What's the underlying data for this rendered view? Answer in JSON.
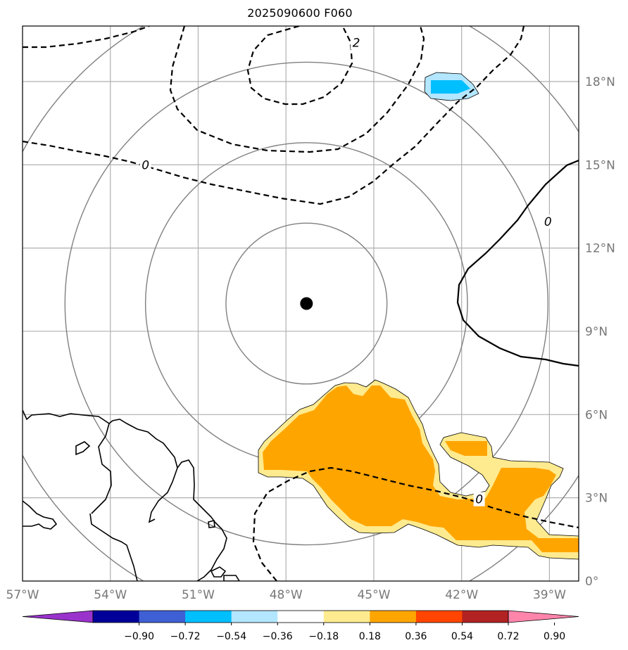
{
  "title": "2025090600 F060",
  "map": {
    "lon_range": [
      -57,
      -38
    ],
    "lat_range": [
      0,
      20
    ],
    "lon_ticks": [
      {
        "value": -57,
        "label": "57°W"
      },
      {
        "value": -54,
        "label": "54°W"
      },
      {
        "value": -51,
        "label": "51°W"
      },
      {
        "value": -48,
        "label": "48°W"
      },
      {
        "value": -45,
        "label": "45°W"
      },
      {
        "value": -42,
        "label": "42°W"
      },
      {
        "value": -39,
        "label": "39°W"
      }
    ],
    "lat_ticks": [
      {
        "value": 0,
        "label": "0°"
      },
      {
        "value": 3,
        "label": "3°N"
      },
      {
        "value": 6,
        "label": "6°N"
      },
      {
        "value": 9,
        "label": "9°N"
      },
      {
        "value": 12,
        "label": "12°N"
      },
      {
        "value": 15,
        "label": "15°N"
      },
      {
        "value": 18,
        "label": "18°N"
      }
    ],
    "center_marker": {
      "lon": -47.3,
      "lat": 10.0
    },
    "range_rings_deg": [
      2.75,
      5.5,
      8.25,
      11.0
    ],
    "contour_labels": [
      {
        "text": "2",
        "lon": -45.6,
        "lat": 19.4
      },
      {
        "text": "0",
        "lon": -52.8,
        "lat": 15.0
      },
      {
        "text": "0",
        "lon": -39.05,
        "lat": 12.95
      },
      {
        "text": "0",
        "lon": -41.4,
        "lat": 2.95
      }
    ],
    "colors": {
      "grid": "#b0b0b0",
      "rings": "#808080",
      "coast": "#000000",
      "contour": "#000000"
    }
  },
  "colorbar": {
    "colors": [
      "#9933cc",
      "#000099",
      "#3f5fd4",
      "#00bfff",
      "#b3e6ff",
      "#ffffff",
      "#ffeb8f",
      "#ffa500",
      "#ff4500",
      "#b22222",
      "#ff85aa"
    ],
    "tick_labels": [
      "−0.90",
      "−0.72",
      "−0.54",
      "−0.36",
      "−0.18",
      "0.18",
      "0.36",
      "0.54",
      "0.72",
      "0.90"
    ]
  }
}
